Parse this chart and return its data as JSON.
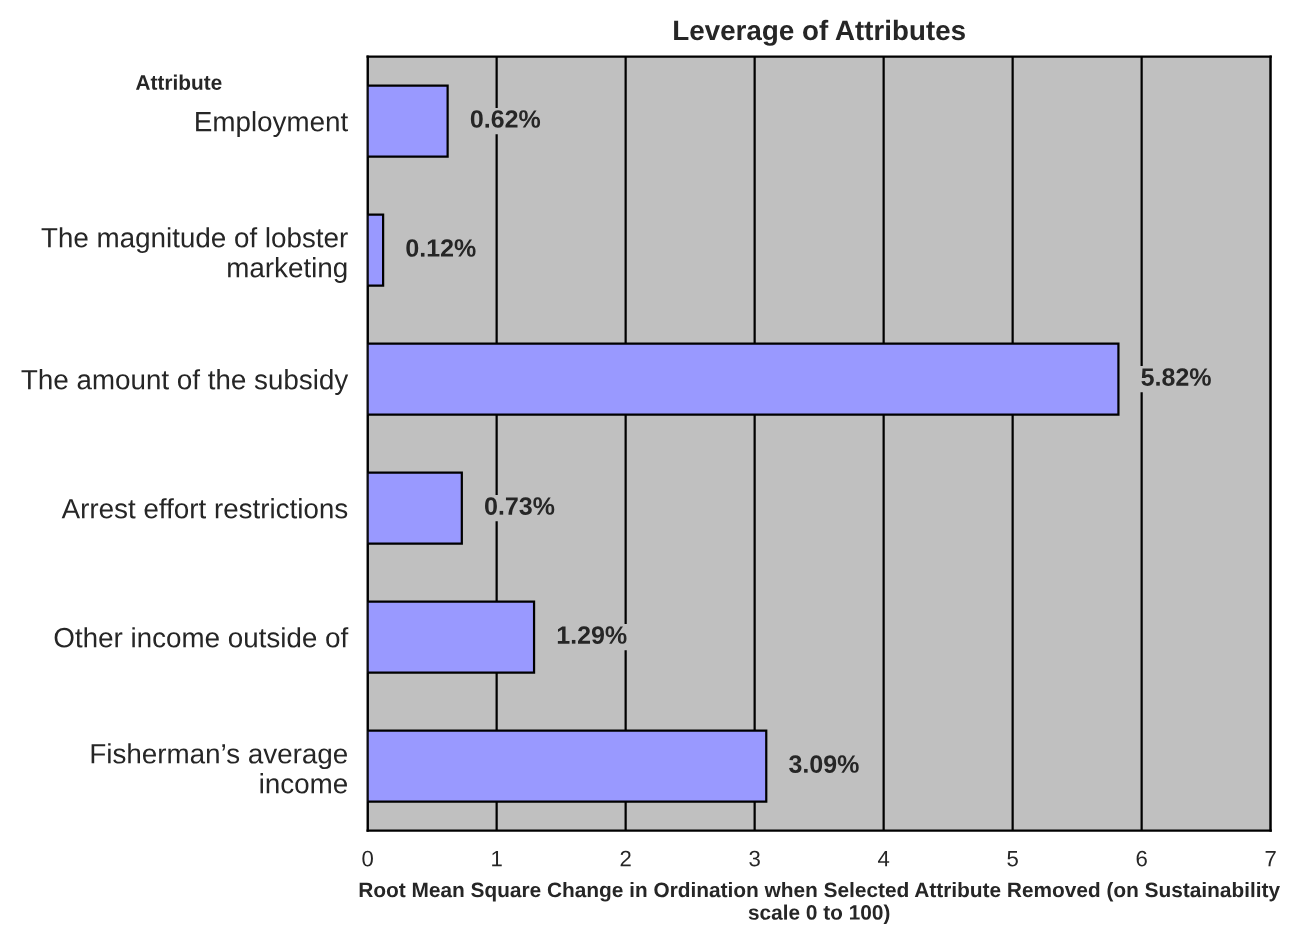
{
  "chart_data": {
    "type": "bar",
    "orientation": "horizontal",
    "title": "Leverage of Attributes",
    "ylabel": "Attribute",
    "xlabel": "Root Mean Square Change in Ordination when Selected Attribute Removed (on Sustainability scale 0 to 100)",
    "categories": [
      "Employment",
      "The magnitude of lobster\nmarketing",
      "The amount of the subsidy",
      "Arrest effort restrictions",
      "Other income outside of",
      "Fisherman’s average\nincome"
    ],
    "values": [
      0.62,
      0.12,
      5.82,
      0.73,
      1.29,
      3.09
    ],
    "value_labels": [
      "0.62%",
      "0.12%",
      "5.82%",
      "0.73%",
      "1.29%",
      "3.09%"
    ],
    "color": "#9999ff",
    "xlim": [
      0,
      7
    ],
    "xticks": [
      0,
      1,
      2,
      3,
      4,
      5,
      6,
      7
    ],
    "grid": "x",
    "legend": false
  }
}
